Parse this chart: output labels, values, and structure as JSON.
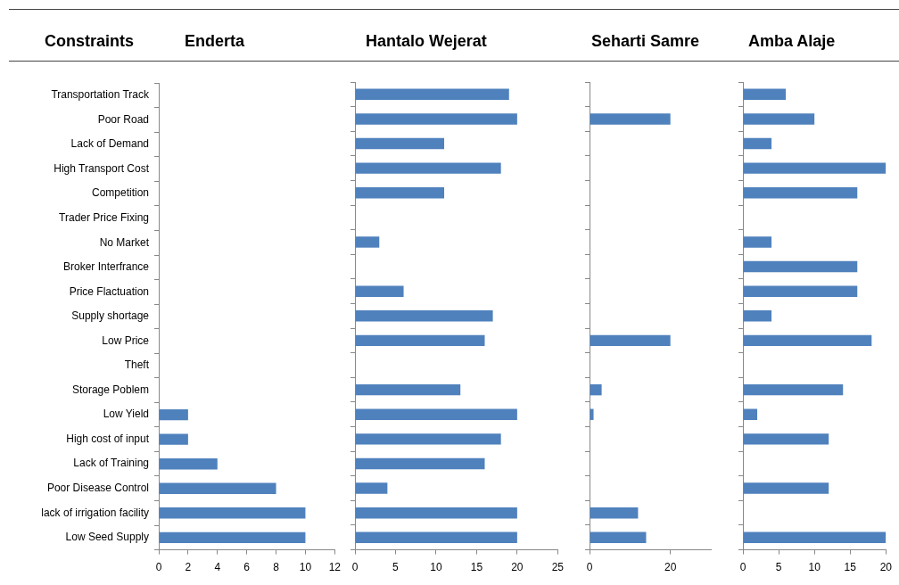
{
  "chart_data": [
    {
      "type": "bar",
      "orientation": "horizontal",
      "title": "Enderta",
      "ylabel": "Constraints",
      "categories": [
        "Transportation Track",
        "Poor Road",
        "Lack of Demand",
        "High Transport Cost",
        "Competition",
        "Trader Price Fixing",
        "No Market",
        "Broker Interfrance",
        "Price Flactuation",
        "Supply shortage",
        "Low Price",
        "Theft",
        "Storage Poblem",
        "Low Yield",
        "High cost of input",
        "Lack of Training",
        "Poor Disease Control",
        "lack of irrigation facility",
        "Low Seed Supply"
      ],
      "values": [
        null,
        null,
        null,
        null,
        null,
        null,
        null,
        null,
        null,
        null,
        null,
        null,
        null,
        2,
        2,
        4,
        8,
        10,
        10
      ],
      "color": "#4f81bd",
      "xlim": [
        0,
        12
      ],
      "xticks": [
        0,
        2,
        4,
        6,
        8,
        10,
        12
      ],
      "grid": false,
      "legend": false
    },
    {
      "type": "bar",
      "orientation": "horizontal",
      "title": "Hantalo Wejerat",
      "categories": [
        null,
        null,
        null,
        null,
        null,
        null,
        null,
        null,
        null,
        null,
        null,
        null,
        null,
        null,
        null,
        null,
        null,
        null,
        null
      ],
      "values": [
        19,
        20,
        11,
        18,
        11,
        null,
        3,
        null,
        6,
        17,
        16,
        null,
        13,
        20,
        18,
        16,
        4,
        20,
        20
      ],
      "color": "#4f81bd",
      "xlim": [
        0,
        25
      ],
      "xticks": [
        0,
        5,
        10,
        15,
        20,
        25
      ],
      "tick_labels": "x",
      "grid": false,
      "legend": false
    },
    {
      "type": "bar",
      "orientation": "horizontal",
      "title": "Seharti Samre",
      "categories": [
        null,
        null,
        null,
        null,
        null,
        null,
        null,
        null,
        null,
        null,
        null,
        null,
        null,
        null,
        null,
        null,
        null,
        null,
        null
      ],
      "values": [
        null,
        20,
        null,
        null,
        null,
        null,
        null,
        null,
        null,
        null,
        20,
        null,
        3,
        1,
        null,
        null,
        null,
        12,
        14
      ],
      "color": "#4f81bd",
      "xlim": [
        0,
        30
      ],
      "xticks": [
        0,
        20
      ],
      "tick_labels": "x",
      "grid": false,
      "legend": false
    },
    {
      "type": "bar",
      "orientation": "horizontal",
      "title": "Amba Alaje",
      "categories": [
        null,
        null,
        null,
        null,
        null,
        null,
        null,
        null,
        null,
        null,
        null,
        null,
        null,
        null,
        null,
        null,
        null,
        null,
        null
      ],
      "values": [
        6,
        10,
        4,
        20,
        16,
        null,
        4,
        16,
        16,
        4,
        18,
        null,
        14,
        2,
        12,
        null,
        12,
        null,
        20
      ],
      "color": "#4f81bd",
      "xlim": [
        0,
        20
      ],
      "xticks": [
        0,
        5,
        10,
        15,
        20
      ],
      "tick_labels": "x",
      "grid": false,
      "legend": false
    }
  ]
}
